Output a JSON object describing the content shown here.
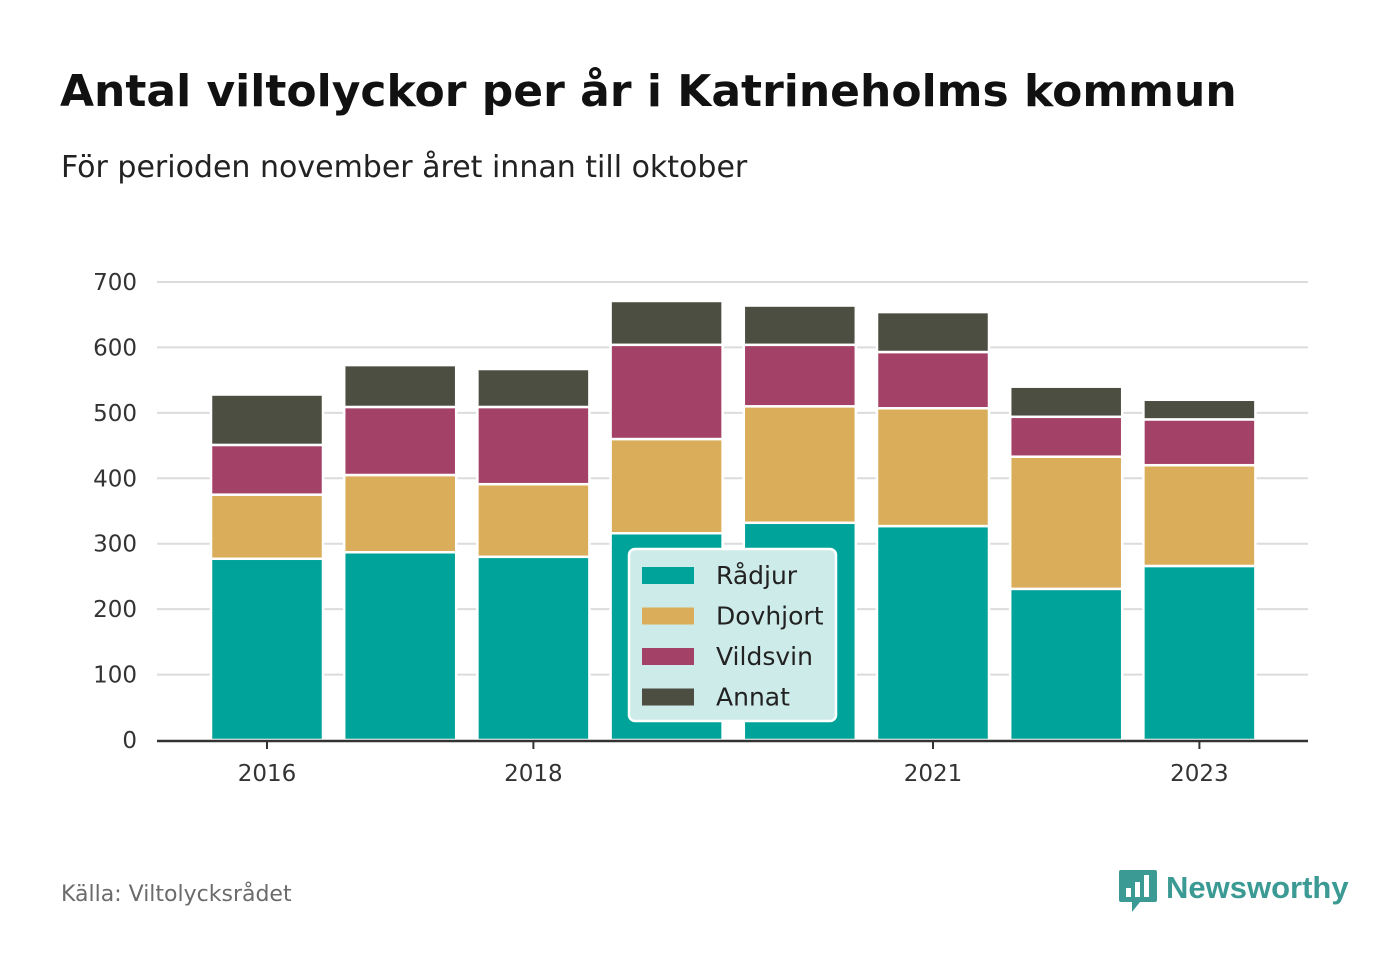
{
  "header": {
    "title": "Antal viltolyckor per år i Katrineholms kommun",
    "subtitle": "För perioden november året innan till oktober"
  },
  "footer": {
    "source": "Källa: Viltolycksrådet",
    "brand": "Newsworthy"
  },
  "chart_data": {
    "type": "bar",
    "stacked": true,
    "categories": [
      "2016",
      "2017",
      "2018",
      "2019",
      "2020",
      "2021",
      "2022",
      "2023"
    ],
    "x_tick_labels": [
      "2016",
      "",
      "2018",
      "",
      "",
      "2021",
      "",
      "2023"
    ],
    "series": [
      {
        "name": "Rådjur",
        "color": "#00a39a",
        "values": [
          277,
          287,
          280,
          316,
          332,
          327,
          231,
          266
        ]
      },
      {
        "name": "Dovhjort",
        "color": "#d9ad59",
        "values": [
          98,
          118,
          111,
          144,
          178,
          180,
          202,
          154
        ]
      },
      {
        "name": "Vildsvin",
        "color": "#a44166",
        "values": [
          76,
          104,
          118,
          144,
          94,
          86,
          61,
          70
        ]
      },
      {
        "name": "Annat",
        "color": "#4c4e41",
        "values": [
          77,
          64,
          58,
          67,
          60,
          61,
          46,
          30
        ]
      }
    ],
    "ylim": [
      0,
      700
    ],
    "yticks": [
      0,
      100,
      200,
      300,
      400,
      500,
      600,
      700
    ],
    "grid": true,
    "legend": "center"
  }
}
